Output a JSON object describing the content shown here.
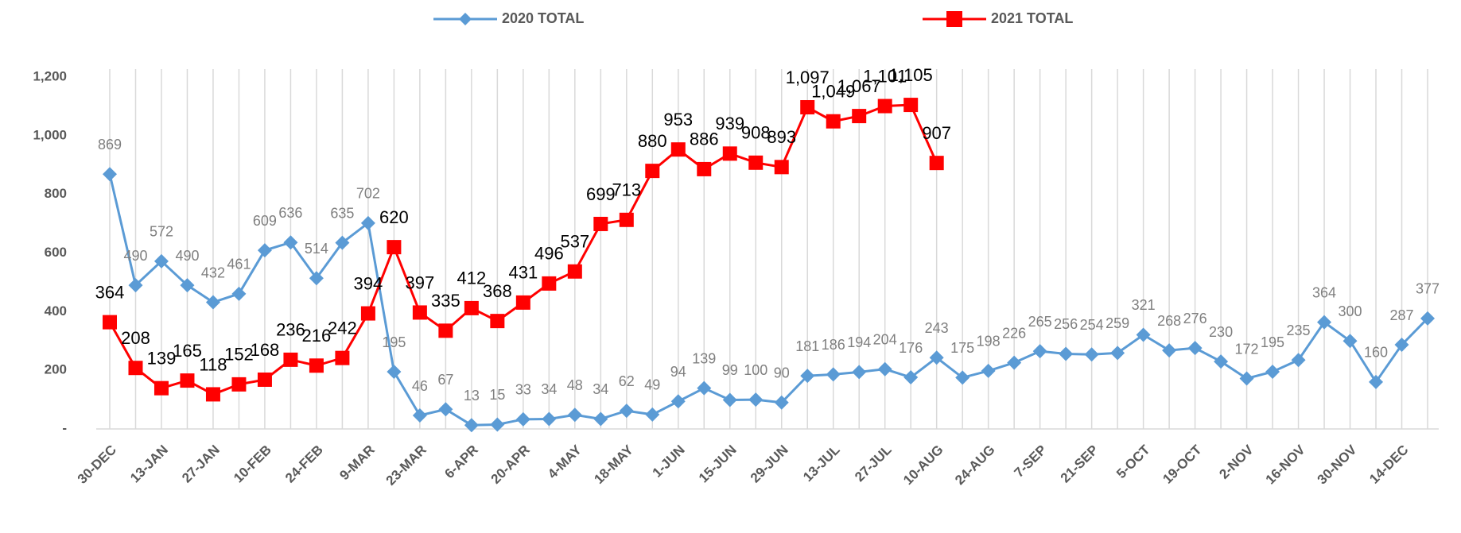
{
  "chart_data": {
    "type": "line",
    "categories": [
      "30-DEC",
      null,
      "13-JAN",
      null,
      "27-JAN",
      null,
      "10-FEB",
      null,
      "24-FEB",
      null,
      "9-MAR",
      null,
      "23-MAR",
      null,
      "6-APR",
      null,
      "20-APR",
      null,
      "4-MAY",
      null,
      "18-MAY",
      null,
      "1-JUN",
      null,
      "15-JUN",
      null,
      "29-JUN",
      null,
      "13-JUL",
      null,
      "27-JUL",
      null,
      "10-AUG",
      null,
      "24-AUG",
      null,
      "7-SEP",
      null,
      "21-SEP",
      null,
      "5-OCT",
      null,
      "19-OCT",
      null,
      "2-NOV",
      null,
      "16-NOV",
      null,
      "30-NOV",
      null,
      "14-DEC",
      null
    ],
    "series": [
      {
        "name": "2020 TOTAL",
        "color": "#5b9bd5",
        "marker": "diamond",
        "values": [
          869,
          490,
          572,
          490,
          432,
          461,
          609,
          636,
          514,
          635,
          702,
          195,
          46,
          67,
          13,
          15,
          33,
          34,
          48,
          34,
          62,
          49,
          94,
          139,
          99,
          100,
          90,
          181,
          186,
          194,
          204,
          176,
          243,
          175,
          198,
          226,
          265,
          256,
          254,
          259,
          321,
          268,
          276,
          230,
          172,
          195,
          235,
          364,
          300,
          160,
          287,
          377
        ]
      },
      {
        "name": "2021 TOTAL",
        "color": "#ff0000",
        "marker": "square",
        "values": [
          364,
          208,
          139,
          165,
          118,
          152,
          168,
          236,
          216,
          242,
          394,
          620,
          397,
          335,
          412,
          368,
          431,
          496,
          537,
          699,
          713,
          880,
          953,
          886,
          939,
          908,
          893,
          1097,
          1049,
          1067,
          1101,
          1105,
          907,
          null,
          null,
          null,
          null,
          null,
          null,
          null,
          null,
          null,
          null,
          null,
          null,
          null,
          null,
          null,
          null,
          null,
          null,
          null
        ],
        "value_labels": [
          "364",
          "208",
          "139",
          "165",
          "118",
          "152",
          "168",
          "236",
          "216",
          "242",
          "394",
          "620",
          "397",
          "335",
          "412",
          "368",
          "431",
          "496",
          "537",
          "699",
          "713",
          "880",
          "953",
          "886",
          "939",
          "908",
          "893",
          "1,097",
          "1,049",
          "1,067",
          "1,101",
          "1,105",
          "907",
          null,
          null,
          null,
          null,
          null,
          null,
          null,
          null,
          null,
          null,
          null,
          null,
          null,
          null,
          null,
          null,
          null,
          null,
          null
        ]
      }
    ],
    "ylim": [
      0,
      1200
    ],
    "yticks": [
      {
        "value": 0,
        "label": "-"
      },
      200,
      400,
      600,
      800,
      {
        "value": 1000,
        "label": "1,000"
      },
      {
        "value": 1200,
        "label": "1,200"
      }
    ],
    "legend": "top"
  }
}
